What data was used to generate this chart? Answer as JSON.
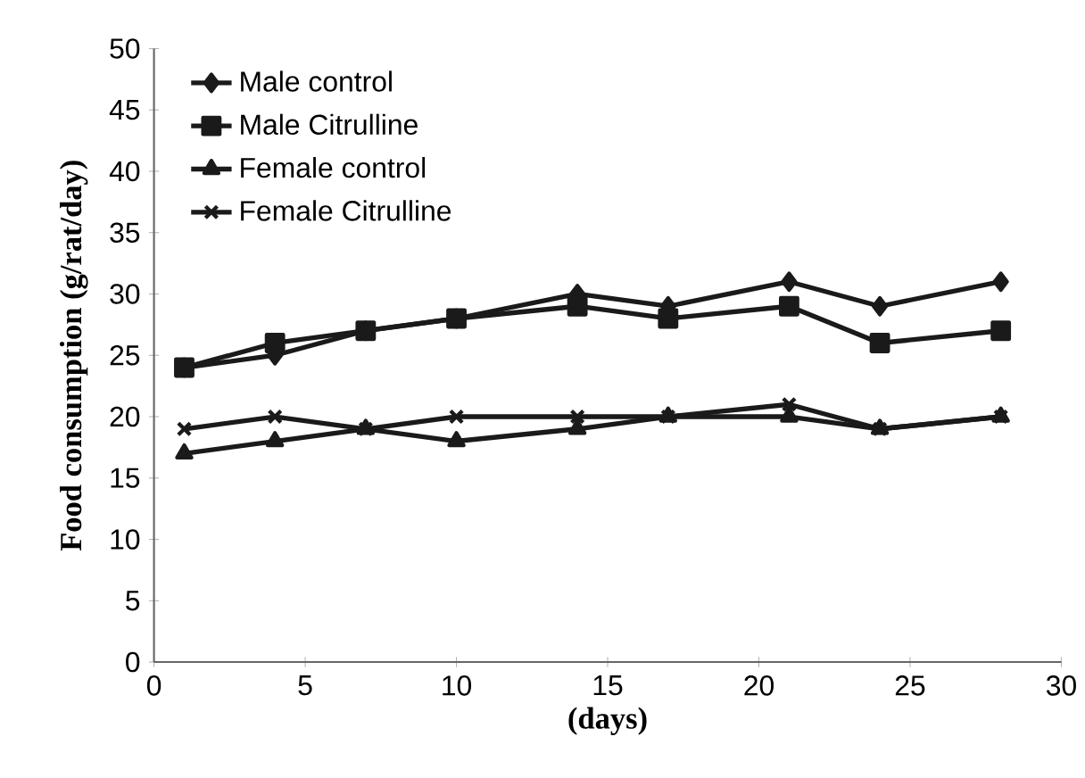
{
  "chart_data": {
    "type": "line",
    "xlabel": "(days)",
    "ylabel": "Food consumption (g/rat/day)",
    "x": [
      1,
      4,
      7,
      10,
      14,
      17,
      21,
      24,
      28
    ],
    "series": [
      {
        "name": "Male control",
        "color": "#1a1a1a",
        "marker": "diamond",
        "values": [
          24,
          25,
          27,
          28,
          30,
          29,
          31,
          29,
          31
        ]
      },
      {
        "name": "Male Citrulline",
        "color": "#1a1a1a",
        "marker": "square",
        "values": [
          24,
          26,
          27,
          28,
          29,
          28,
          29,
          26,
          27
        ]
      },
      {
        "name": "Female control",
        "color": "#1a1a1a",
        "marker": "triangle",
        "values": [
          17,
          18,
          19,
          18,
          19,
          20,
          20,
          19,
          20
        ]
      },
      {
        "name": "Female Citrulline",
        "color": "#1a1a1a",
        "marker": "cross",
        "values": [
          19,
          20,
          19,
          20,
          20,
          20,
          21,
          19,
          20
        ]
      }
    ],
    "xlim": [
      0,
      30
    ],
    "xticks": [
      0,
      5,
      10,
      15,
      20,
      25,
      30
    ],
    "ylim": [
      0,
      50
    ],
    "yticks": [
      0,
      5,
      10,
      15,
      20,
      25,
      30,
      35,
      40,
      45,
      50
    ],
    "grid": false,
    "legend": "top left",
    "line_style": "solid"
  }
}
